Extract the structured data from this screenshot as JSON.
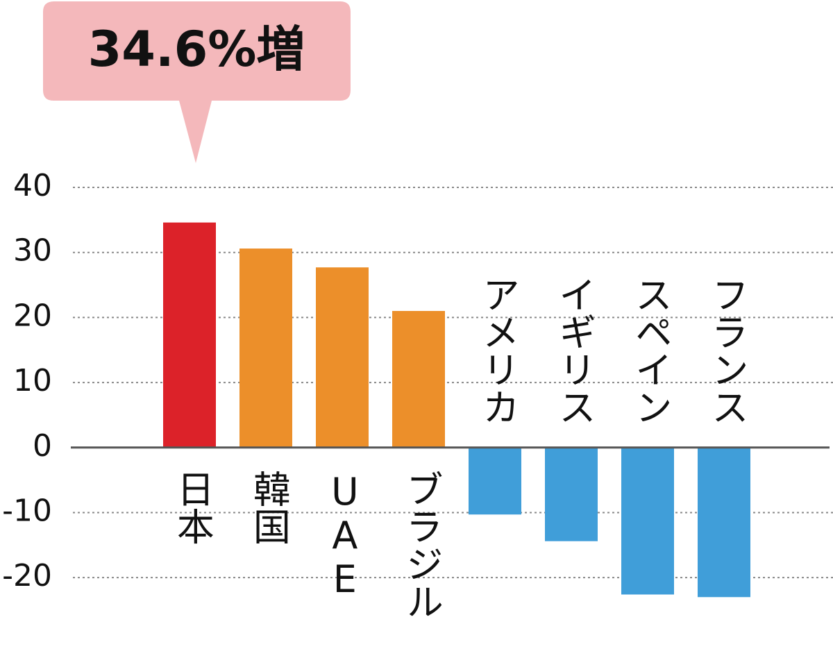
{
  "chart_data": {
    "type": "bar",
    "annotation": "34.6%増",
    "categories": [
      "日本",
      "韓国",
      "UAE",
      "ブラジル",
      "アメリカ",
      "イギリス",
      "スペイン",
      "フランス"
    ],
    "values": [
      34.6,
      30.6,
      27.7,
      21.0,
      -10.3,
      -14.4,
      -22.6,
      -23.0
    ],
    "colors": [
      "#dc2229",
      "#ec8f2a",
      "#ec8f2a",
      "#ec8f2a",
      "#409ed9",
      "#409ed9",
      "#409ed9",
      "#409ed9"
    ],
    "ylim": [
      -25,
      40
    ],
    "yticks": [
      40,
      30,
      20,
      10,
      0,
      -10,
      -20
    ],
    "grid": true
  }
}
